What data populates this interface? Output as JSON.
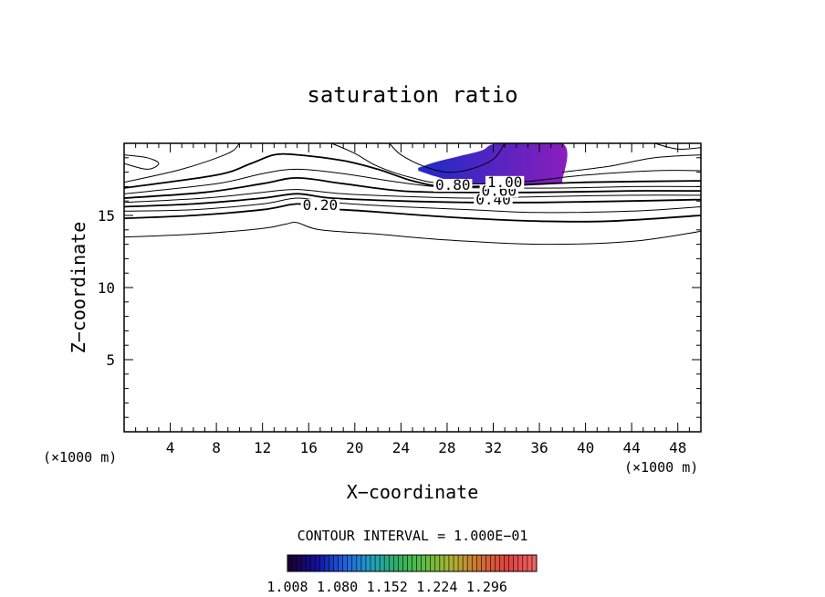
{
  "chart_data": {
    "type": "contour",
    "title": "saturation ratio",
    "xlabel": "X−coordinate",
    "ylabel": "Z−coordinate",
    "x_unit_left": "(×1000 m)",
    "x_unit_right": "(×1000 m)",
    "xlim": [
      0,
      50
    ],
    "ylim": [
      0,
      20
    ],
    "x_ticks": [
      4,
      8,
      12,
      16,
      20,
      24,
      28,
      32,
      36,
      40,
      44,
      48
    ],
    "x_tick_labels": [
      "4",
      "8",
      "12",
      "16",
      "20",
      "24",
      "28",
      "32",
      "36",
      "40",
      "44",
      "48"
    ],
    "y_ticks": [
      5,
      10,
      15
    ],
    "y_tick_labels": [
      "5",
      "10",
      "15"
    ],
    "contour_interval_text": "CONTOUR INTERVAL = 1.000E−01",
    "contour_labels": [
      {
        "text": "0.20",
        "x": 17,
        "z": 15.5
      },
      {
        "text": "0.40",
        "x": 32,
        "z": 15.9
      },
      {
        "text": "0.60",
        "x": 32.5,
        "z": 16.5
      },
      {
        "text": "0.80",
        "x": 28.5,
        "z": 16.9
      },
      {
        "text": "1.00",
        "x": 33,
        "z": 17.1
      }
    ],
    "contours": [
      {
        "level": 0.1,
        "points": [
          [
            0,
            13.5
          ],
          [
            6,
            13.7
          ],
          [
            12,
            14.1
          ],
          [
            14,
            14.4
          ],
          [
            15,
            14.5
          ],
          [
            17,
            14.0
          ],
          [
            22,
            13.7
          ],
          [
            28,
            13.3
          ],
          [
            36,
            13.0
          ],
          [
            44,
            13.2
          ],
          [
            50,
            13.9
          ]
        ]
      },
      {
        "level": 0.2,
        "points": [
          [
            0,
            14.8
          ],
          [
            6,
            15.0
          ],
          [
            12,
            15.4
          ],
          [
            15,
            15.8
          ],
          [
            17,
            15.5
          ],
          [
            21,
            15.3
          ],
          [
            26,
            15.0
          ],
          [
            30,
            14.8
          ],
          [
            36,
            14.6
          ],
          [
            42,
            14.6
          ],
          [
            50,
            15.0
          ]
        ]
      },
      {
        "level": 0.3,
        "points": [
          [
            0,
            15.3
          ],
          [
            6,
            15.4
          ],
          [
            12,
            15.8
          ],
          [
            15,
            16.2
          ],
          [
            18,
            15.9
          ],
          [
            24,
            15.6
          ],
          [
            30,
            15.4
          ],
          [
            36,
            15.2
          ],
          [
            44,
            15.3
          ],
          [
            50,
            15.6
          ]
        ]
      },
      {
        "level": 0.4,
        "points": [
          [
            0,
            15.6
          ],
          [
            6,
            15.8
          ],
          [
            12,
            16.2
          ],
          [
            15,
            16.5
          ],
          [
            18,
            16.2
          ],
          [
            24,
            16.0
          ],
          [
            30,
            15.9
          ],
          [
            36,
            15.9
          ],
          [
            44,
            16.0
          ],
          [
            50,
            16.1
          ]
        ]
      },
      {
        "level": 0.5,
        "points": [
          [
            0,
            15.9
          ],
          [
            7,
            16.2
          ],
          [
            12,
            16.6
          ],
          [
            15,
            16.8
          ],
          [
            19,
            16.5
          ],
          [
            25,
            16.3
          ],
          [
            30,
            16.2
          ],
          [
            36,
            16.3
          ],
          [
            44,
            16.4
          ],
          [
            50,
            16.4
          ]
        ]
      },
      {
        "level": 0.6,
        "points": [
          [
            0,
            16.2
          ],
          [
            7,
            16.6
          ],
          [
            12,
            17.2
          ],
          [
            15,
            17.6
          ],
          [
            19,
            17.2
          ],
          [
            24,
            16.7
          ],
          [
            29,
            16.6
          ],
          [
            36,
            16.6
          ],
          [
            44,
            16.7
          ],
          [
            50,
            16.7
          ]
        ]
      },
      {
        "level": 0.7,
        "points": [
          [
            0,
            16.5
          ],
          [
            8,
            17.2
          ],
          [
            12,
            17.9
          ],
          [
            15,
            18.2
          ],
          [
            19,
            17.9
          ],
          [
            23,
            17.4
          ],
          [
            27,
            17.0
          ],
          [
            32,
            16.9
          ],
          [
            38,
            16.9
          ],
          [
            44,
            17.0
          ],
          [
            50,
            17.0
          ]
        ]
      },
      {
        "level": 0.8,
        "points": [
          [
            0,
            16.9
          ],
          [
            8,
            17.8
          ],
          [
            11,
            18.6
          ],
          [
            13,
            19.2
          ],
          [
            15,
            19.2
          ],
          [
            19,
            18.8
          ],
          [
            22,
            18.2
          ],
          [
            25,
            17.4
          ],
          [
            28,
            17.0
          ],
          [
            34,
            17.1
          ],
          [
            40,
            17.3
          ],
          [
            50,
            17.4
          ]
        ]
      },
      {
        "level": 0.9,
        "points": [
          [
            0,
            17.3
          ],
          [
            5,
            18.2
          ],
          [
            9,
            19.3
          ],
          [
            10,
            20
          ]
        ]
      },
      {
        "level": 0.9,
        "points": [
          [
            18,
            20
          ],
          [
            20,
            19.3
          ],
          [
            22,
            18.4
          ],
          [
            25,
            17.6
          ],
          [
            28,
            17.2
          ],
          [
            34,
            17.3
          ],
          [
            40,
            17.8
          ],
          [
            46,
            18.1
          ],
          [
            50,
            18.1
          ]
        ]
      },
      {
        "level": 0.95,
        "points": [
          [
            0,
            18.6
          ],
          [
            2,
            18.2
          ],
          [
            3,
            18.6
          ],
          [
            2,
            19.0
          ],
          [
            0,
            19.2
          ]
        ]
      },
      {
        "level": 0.95,
        "points": [
          [
            23,
            20
          ],
          [
            24,
            19.2
          ],
          [
            26,
            18.4
          ],
          [
            28,
            18.0
          ],
          [
            30,
            18.2
          ],
          [
            32,
            18.9
          ],
          [
            33,
            20
          ]
        ]
      },
      {
        "level": 0.95,
        "points": [
          [
            38,
            18.0
          ],
          [
            42,
            18.4
          ],
          [
            46,
            19.0
          ],
          [
            50,
            19.2
          ]
        ]
      },
      {
        "level": 0.95,
        "points": [
          [
            46,
            20
          ],
          [
            48,
            19.6
          ],
          [
            50,
            19.7
          ]
        ]
      }
    ],
    "shaded_region": {
      "description_level": ">= 1.00",
      "points": [
        [
          25.5,
          18.3
        ],
        [
          27,
          18.7
        ],
        [
          29,
          19.1
        ],
        [
          31,
          19.5
        ],
        [
          32.5,
          20
        ],
        [
          38,
          20
        ],
        [
          38,
          17.5
        ],
        [
          37.5,
          17.2
        ],
        [
          33,
          17.1
        ],
        [
          29,
          17.3
        ],
        [
          27,
          17.7
        ],
        [
          25.5,
          18.1
        ]
      ],
      "color_start": "#1e2ac8",
      "color_end": "#8a1ebc"
    },
    "colorbar": {
      "min": 1.008,
      "max": 1.368,
      "tick_labels": [
        "1.008",
        "1.080",
        "1.152",
        "1.224",
        "1.296"
      ],
      "colors": [
        "#1a0030",
        "#1010a0",
        "#2060e0",
        "#20a0c0",
        "#30b060",
        "#60c040",
        "#b0b030",
        "#d07030",
        "#e04040",
        "#f06060"
      ]
    }
  }
}
